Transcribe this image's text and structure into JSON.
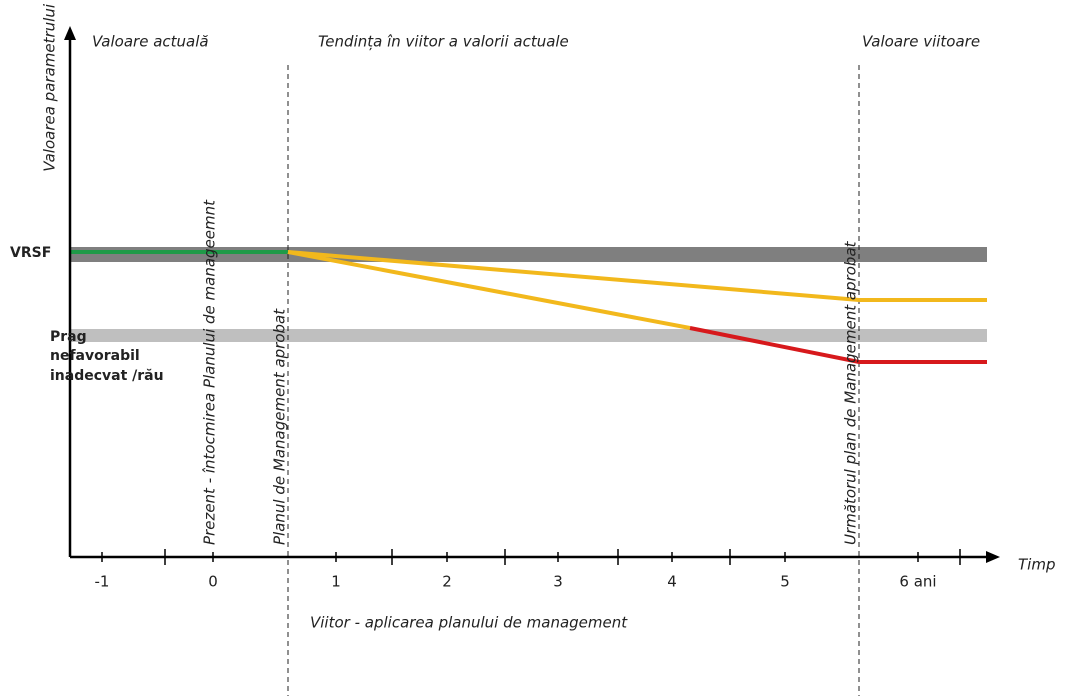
{
  "title_sections": [
    "Valoare actuală",
    "Tendința în viitor a valorii actuale",
    "Valoare viitoare"
  ],
  "y_axis_label": "Valoarea parametrului",
  "x_axis_label": "Timp",
  "levels": {
    "reference": "VRSF",
    "threshold": [
      "Prag",
      "nefavorabil",
      "inadecvat /rău"
    ]
  },
  "milestones": [
    "Prezent - întocmirea Planului de manageemnt",
    "Planul de Management aprobat",
    "Următorul plan de Management aprobat"
  ],
  "x_ticks": [
    "-1",
    "0",
    "1",
    "2",
    "3",
    "4",
    "5",
    "6 ani"
  ],
  "period_label": "Viitor - aplicarea planului de management"
}
